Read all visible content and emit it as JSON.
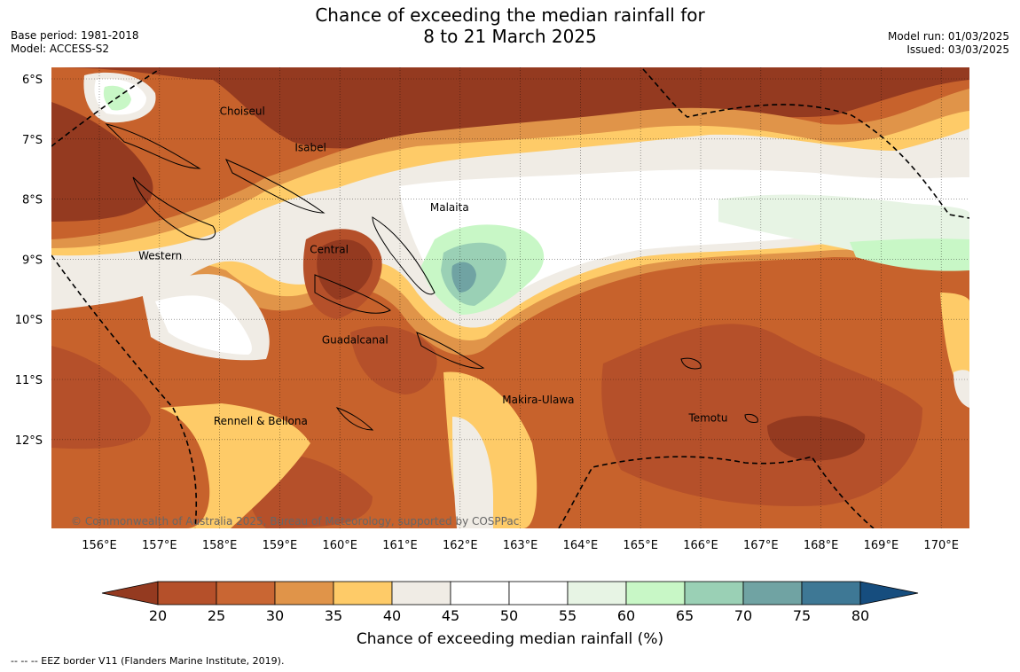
{
  "header": {
    "title_line1": "Chance of exceeding the median rainfall for",
    "title_line2": "8 to 21 March 2025",
    "base_period": "Base period: 1981-2018",
    "model": "Model: ACCESS-S2",
    "model_run": "Model run: 01/03/2025",
    "issued": "Issued: 03/03/2025"
  },
  "map": {
    "lon_labels": [
      "156°E",
      "157°E",
      "158°E",
      "159°E",
      "160°E",
      "161°E",
      "162°E",
      "163°E",
      "164°E",
      "165°E",
      "166°E",
      "167°E",
      "168°E",
      "169°E",
      "170°E"
    ],
    "lat_labels": [
      "6°S",
      "7°S",
      "8°S",
      "9°S",
      "10°S",
      "11°S",
      "12°S"
    ],
    "places": [
      {
        "name": "Choiseul",
        "lon": 158.0,
        "lat": -6.6
      },
      {
        "name": "Isabel",
        "lon": 159.25,
        "lat": -7.2
      },
      {
        "name": "Malaita",
        "lon": 161.5,
        "lat": -8.2
      },
      {
        "name": "Western",
        "lon": 156.65,
        "lat": -9.0
      },
      {
        "name": "Central",
        "lon": 159.5,
        "lat": -8.9
      },
      {
        "name": "Guadalcanal",
        "lon": 159.7,
        "lat": -10.4
      },
      {
        "name": "Makira-Ulawa",
        "lon": 162.7,
        "lat": -11.4
      },
      {
        "name": "Temotu",
        "lon": 165.8,
        "lat": -11.7
      },
      {
        "name": "Rennell & Bellona",
        "lon": 157.9,
        "lat": -11.75
      }
    ],
    "copyright": "© Commonwealth of Australia 2025, Bureau of Meteorology, supported by COSPPac",
    "grid_lines": true,
    "dominant_color": "#c7622c"
  },
  "colorbar": {
    "title": "Chance of exceeding median rainfall (%)",
    "ticks": [
      "20",
      "25",
      "30",
      "35",
      "40",
      "45",
      "50",
      "55",
      "60",
      "65",
      "70",
      "75",
      "80"
    ],
    "colors": [
      "#943a20",
      "#b5502a",
      "#c96633",
      "#e09449",
      "#fecb68",
      "#f0ece5",
      "#ffffff",
      "#ffffff",
      "#e7f4e4",
      "#c8f7c6",
      "#9ad0b5",
      "#70a3a3",
      "#3e7895",
      "#164d7e"
    ]
  },
  "footnote": "--  --  -- EEZ border V11 (Flanders Marine Institute, 2019)."
}
